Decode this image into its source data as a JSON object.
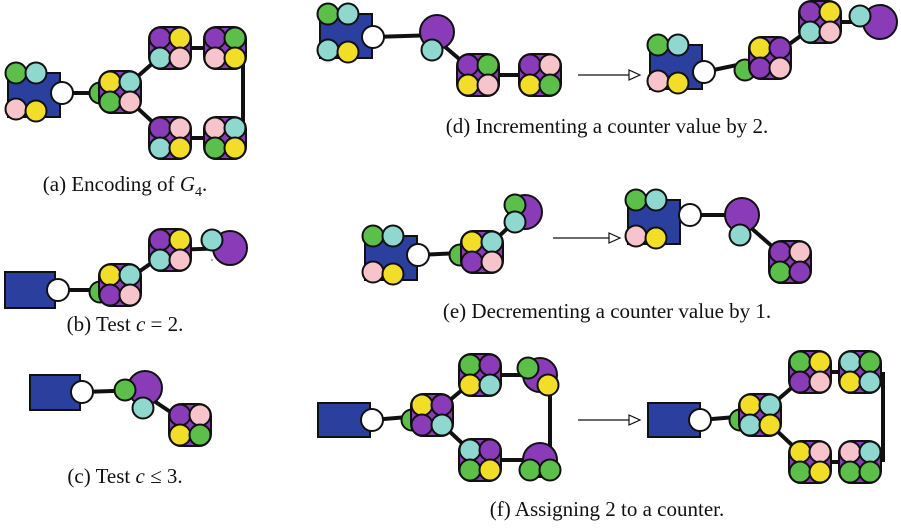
{
  "figure": {
    "captions": [
      {
        "label": "(a)",
        "text": "Encoding of",
        "math": "G",
        "sub": "4",
        "tail": "."
      },
      {
        "label": "(b)",
        "text": "Test",
        "math": "c",
        "tail": "= 2."
      },
      {
        "label": "(c)",
        "text": "Test",
        "math": "c",
        "tail": "≤ 3."
      },
      {
        "label": "(d)",
        "text": "Incrementing a counter value by 2."
      },
      {
        "label": "(e)",
        "text": "Decrementing a counter value by 1."
      },
      {
        "label": "(f)",
        "text": "Assigning 2 to a counter."
      }
    ]
  }
}
